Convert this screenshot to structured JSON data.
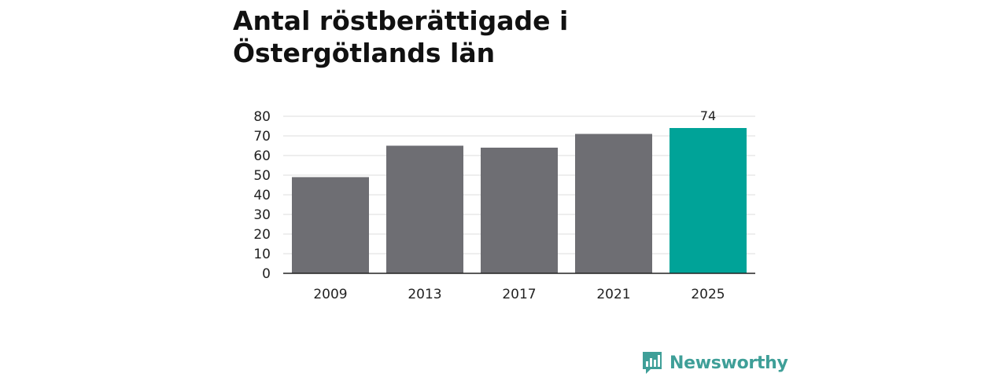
{
  "chart_data": {
    "type": "bar",
    "title": "Antal röstberättigade i Östergötlands län",
    "categories": [
      "2009",
      "2013",
      "2017",
      "2021",
      "2025"
    ],
    "values": [
      49,
      65,
      64,
      71,
      74
    ],
    "data_labels": [
      {
        "index": 4,
        "text": "74"
      }
    ],
    "ylim": [
      0,
      80
    ],
    "yticks": [
      0,
      10,
      20,
      30,
      40,
      50,
      60,
      70,
      80
    ],
    "grid": true,
    "colors": {
      "default": "#6e6e73",
      "highlight": "#00a398"
    },
    "highlight_index": 4
  },
  "brand": {
    "name": "Newsworthy",
    "icon": "bar-chart-speech-bubble-icon",
    "color": "#3f9f98"
  }
}
